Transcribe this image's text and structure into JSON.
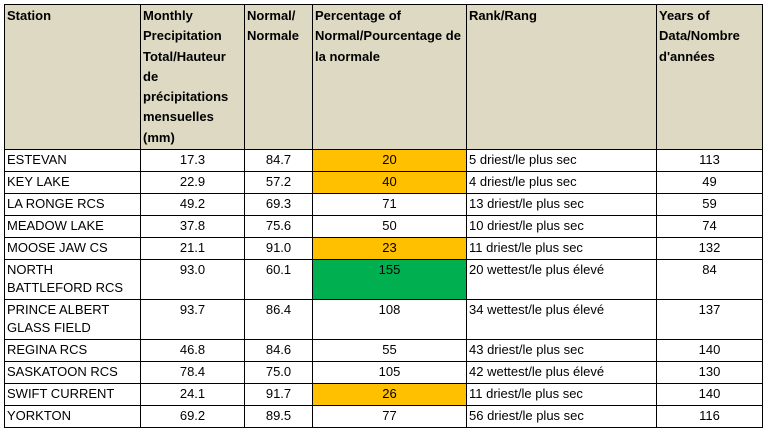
{
  "table": {
    "columns": [
      "Station",
      "Monthly Precipitation Total/Hauteur de précipitations mensuelles (mm)",
      "Normal/ Normale",
      "Percentage of Normal/Pourcentage de la normale",
      "Rank/Rang",
      "Years of Data/Nombre d'années"
    ],
    "rows": [
      {
        "station": "ESTEVAN",
        "precip": "17.3",
        "normal": "84.7",
        "pct": "20",
        "rank": "5 driest/le plus sec",
        "years": "113",
        "highlight": "orange"
      },
      {
        "station": "KEY LAKE",
        "precip": "22.9",
        "normal": "57.2",
        "pct": "40",
        "rank": "4 driest/le plus sec",
        "years": "49",
        "highlight": "orange"
      },
      {
        "station": "LA RONGE RCS",
        "precip": "49.2",
        "normal": "69.3",
        "pct": "71",
        "rank": "13 driest/le plus sec",
        "years": "59",
        "highlight": ""
      },
      {
        "station": "MEADOW LAKE",
        "precip": "37.8",
        "normal": "75.6",
        "pct": "50",
        "rank": "10 driest/le plus sec",
        "years": "74",
        "highlight": ""
      },
      {
        "station": "MOOSE JAW CS",
        "precip": "21.1",
        "normal": "91.0",
        "pct": "23",
        "rank": "11 driest/le plus sec",
        "years": "132",
        "highlight": "orange"
      },
      {
        "station": "NORTH BATTLEFORD RCS",
        "precip": "93.0",
        "normal": "60.1",
        "pct": "155",
        "rank": "20 wettest/le plus élevé",
        "years": "84",
        "highlight": "green"
      },
      {
        "station": "PRINCE ALBERT GLASS FIELD",
        "precip": "93.7",
        "normal": "86.4",
        "pct": "108",
        "rank": "34 wettest/le plus élevé",
        "years": "137",
        "highlight": ""
      },
      {
        "station": "REGINA RCS",
        "precip": "46.8",
        "normal": "84.6",
        "pct": "55",
        "rank": "43 driest/le plus sec",
        "years": "140",
        "highlight": ""
      },
      {
        "station": "SASKATOON RCS",
        "precip": "78.4",
        "normal": "75.0",
        "pct": "105",
        "rank": "42 wettest/le plus élevé",
        "years": "130",
        "highlight": ""
      },
      {
        "station": "SWIFT CURRENT",
        "precip": "24.1",
        "normal": "91.7",
        "pct": "26",
        "rank": "11 driest/le plus sec",
        "years": "140",
        "highlight": "orange"
      },
      {
        "station": "YORKTON",
        "precip": "69.2",
        "normal": "89.5",
        "pct": "77",
        "rank": "56 driest/le plus sec",
        "years": "116",
        "highlight": ""
      }
    ]
  },
  "colors": {
    "header_background": "#ddd9c3",
    "highlight_orange": "#ffc000",
    "highlight_green": "#00b050"
  }
}
